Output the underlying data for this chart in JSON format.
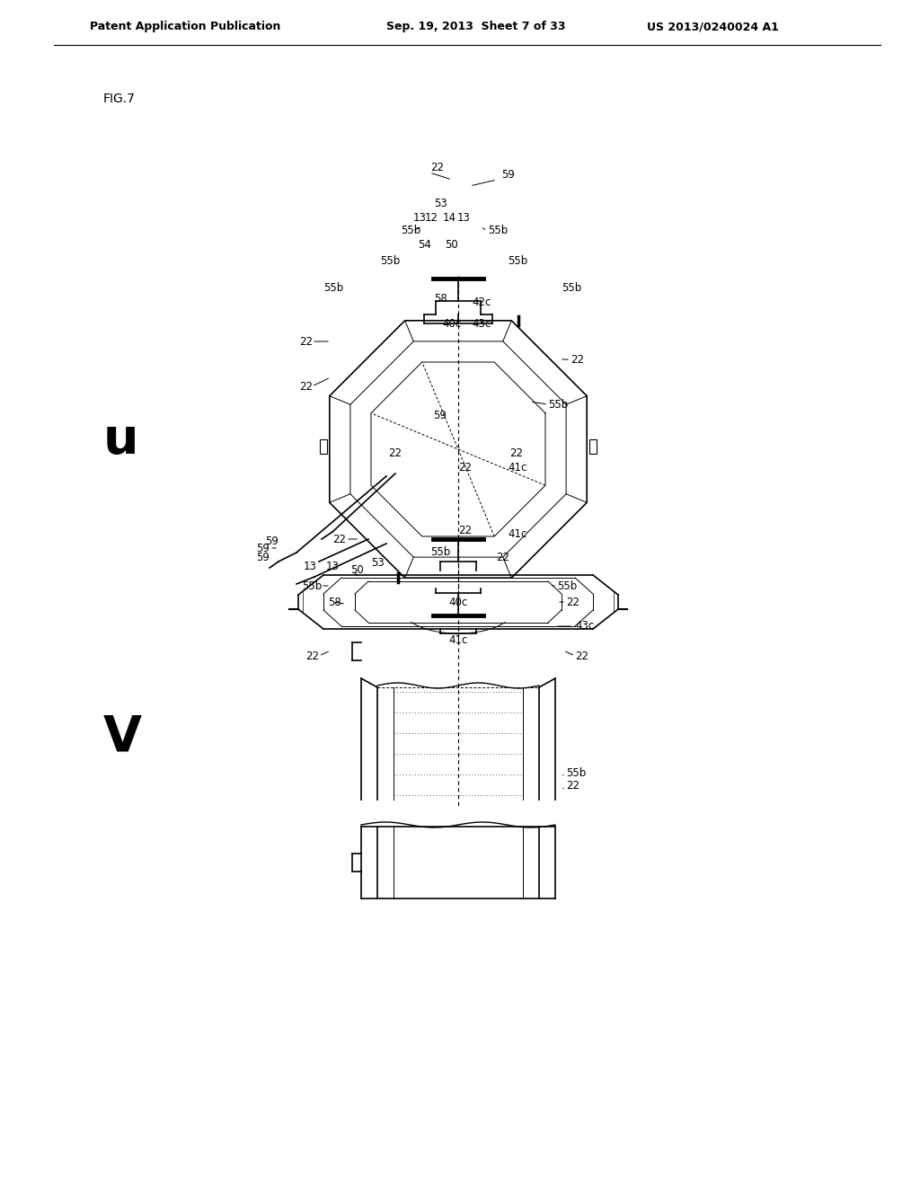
{
  "bg_color": "#ffffff",
  "text_color": "#000000",
  "line_color": "#000000",
  "header_left": "Patent Application Publication",
  "header_mid": "Sep. 19, 2013  Sheet 7 of 33",
  "header_right": "US 2013/0240024 A1",
  "fig_label": "FIG.7",
  "view_u_label": "u",
  "view_v_label": "V",
  "line_width": 1.2,
  "thin_lw": 0.7
}
